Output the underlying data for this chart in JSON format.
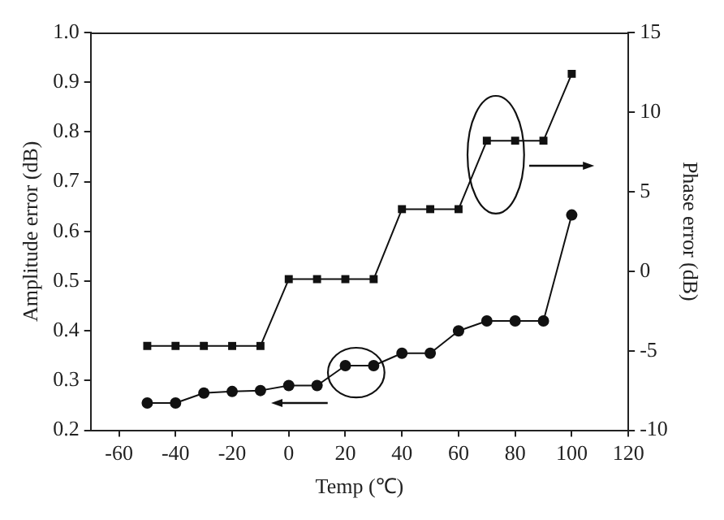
{
  "chart_data": {
    "type": "line",
    "xlabel": "Temp (℃)",
    "ylabel": "Amplitude error (dB)",
    "y2label": "Phase error (dB)",
    "x": [
      -50,
      -40,
      -30,
      -20,
      -10,
      0,
      10,
      20,
      30,
      40,
      50,
      60,
      70,
      80,
      90,
      100
    ],
    "xlim": [
      -70,
      120
    ],
    "xticks": [
      -60,
      -40,
      -20,
      0,
      20,
      40,
      60,
      80,
      100,
      120
    ],
    "ylim": [
      0.2,
      1.0
    ],
    "yticks": [
      {
        "value": 0.2,
        "label": "0.2"
      },
      {
        "value": 0.3,
        "label": "0.3"
      },
      {
        "value": 0.4,
        "label": "0.4"
      },
      {
        "value": 0.5,
        "label": "0.5"
      },
      {
        "value": 0.6,
        "label": "0.6"
      },
      {
        "value": 0.7,
        "label": "0.7"
      },
      {
        "value": 0.8,
        "label": "0.8"
      },
      {
        "value": 0.9,
        "label": "0.9"
      },
      {
        "value": 1.0,
        "label": "1.0"
      }
    ],
    "y2lim": [
      -10,
      15
    ],
    "y2ticks": [
      -10,
      -5,
      0,
      5,
      10,
      15
    ],
    "grid": false,
    "legend": false,
    "line_style": "solid",
    "series": [
      {
        "color": "#111111",
        "marker": "circle",
        "values": [
          0.255,
          0.255,
          0.275,
          0.278,
          0.28,
          0.29,
          0.29,
          0.33,
          0.33,
          0.355,
          0.355,
          0.4,
          0.42,
          0.42,
          0.42,
          0.633
        ]
      },
      {
        "color": "#111111",
        "marker": "square",
        "axis": "y2",
        "values": [
          -4.7,
          -4.7,
          -4.7,
          -4.7,
          -4.7,
          -0.5,
          -0.5,
          -0.5,
          -0.5,
          3.9,
          3.9,
          3.9,
          8.2,
          8.2,
          8.2,
          12.4
        ]
      }
    ]
  }
}
